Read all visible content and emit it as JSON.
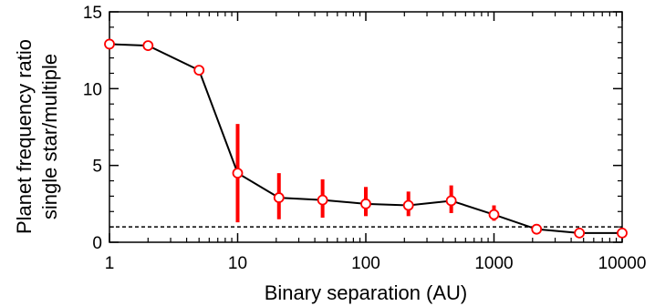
{
  "chart_data": {
    "type": "line",
    "xlabel": "Binary separation (AU)",
    "ylabel": [
      "Planet frequency ratio",
      "single star/multiple"
    ],
    "x_scale": "log",
    "xlim": [
      1,
      10000
    ],
    "ylim": [
      0,
      15
    ],
    "x_ticks": [
      1,
      10,
      100,
      1000,
      10000
    ],
    "x_tick_labels": [
      "1",
      "10",
      "100",
      "1000",
      "10000"
    ],
    "y_ticks": [
      0,
      5,
      10,
      15
    ],
    "y_tick_labels": [
      "0",
      "5",
      "10",
      "15"
    ],
    "grid": false,
    "reference_line": {
      "y": 1,
      "style": "dashed"
    },
    "series": [
      {
        "points": [
          {
            "x": 1,
            "y": 12.9
          },
          {
            "x": 2,
            "y": 12.8
          },
          {
            "x": 5,
            "y": 11.2
          },
          {
            "x": 10,
            "y": 4.5,
            "err_low": 1.3,
            "err_high": 7.7
          },
          {
            "x": 21,
            "y": 2.9,
            "err_low": 1.5,
            "err_high": 4.5
          },
          {
            "x": 46,
            "y": 2.75,
            "err_low": 1.6,
            "err_high": 4.1
          },
          {
            "x": 100,
            "y": 2.5,
            "err_low": 1.7,
            "err_high": 3.6
          },
          {
            "x": 215,
            "y": 2.4,
            "err_low": 1.7,
            "err_high": 3.3
          },
          {
            "x": 464,
            "y": 2.7,
            "err_low": 1.9,
            "err_high": 3.7
          },
          {
            "x": 1000,
            "y": 1.8,
            "err_low": 1.4,
            "err_high": 2.4
          },
          {
            "x": 2150,
            "y": 0.85
          },
          {
            "x": 4640,
            "y": 0.6
          },
          {
            "x": 10000,
            "y": 0.6
          }
        ]
      }
    ],
    "colors": {
      "line": "#000000",
      "marker_edge": "#ff0000",
      "marker_fill": "#ffffff",
      "error_bar": "#ff0000"
    }
  }
}
